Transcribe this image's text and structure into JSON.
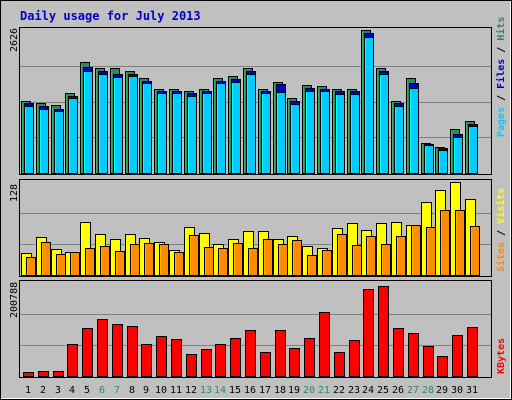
{
  "chart_data": [
    {
      "type": "bar",
      "panel": "hits-files-pages",
      "title": "Daily usage for July 2013",
      "ymax_label": "2626",
      "ylim": [
        0,
        2626
      ],
      "right_labels": {
        "pages": "Pages",
        "files": "Files",
        "hits": "Hits",
        "sep": " / "
      },
      "categories": [
        "1",
        "2",
        "3",
        "4",
        "5",
        "6",
        "7",
        "8",
        "9",
        "10",
        "11",
        "12",
        "13",
        "14",
        "15",
        "16",
        "17",
        "18",
        "19",
        "20",
        "21",
        "22",
        "23",
        "24",
        "25",
        "26",
        "27",
        "28",
        "29",
        "30",
        "31"
      ],
      "series": [
        {
          "name": "Hits",
          "color": "#2e8b57",
          "values": [
            1323,
            1279,
            1241,
            1478,
            2038,
            1930,
            1930,
            1873,
            1740,
            1550,
            1550,
            1500,
            1550,
            1740,
            1778,
            1930,
            1550,
            1664,
            1370,
            1608,
            1597,
            1550,
            1550,
            2626,
            1930,
            1323,
            1740,
            552,
            471,
            804,
            947
          ]
        },
        {
          "name": "Files",
          "color": "#0000cd",
          "values": [
            1282,
            1227,
            1182,
            1415,
            1942,
            1872,
            1827,
            1827,
            1690,
            1510,
            1510,
            1461,
            1510,
            1690,
            1720,
            1866,
            1510,
            1627,
            1318,
            1560,
            1547,
            1510,
            1510,
            2565,
            1866,
            1280,
            1650,
            528,
            455,
            719,
            900
          ]
        },
        {
          "name": "Pages",
          "color": "#00ccff",
          "values": [
            1236,
            1176,
            1138,
            1371,
            1873,
            1810,
            1760,
            1773,
            1646,
            1467,
            1467,
            1411,
            1467,
            1646,
            1672,
            1810,
            1473,
            1482,
            1270,
            1515,
            1505,
            1455,
            1455,
            2497,
            1810,
            1236,
            1560,
            505,
            430,
            658,
            856
          ]
        }
      ]
    },
    {
      "type": "bar",
      "panel": "visits-sites",
      "ymax_label": "128",
      "ylim": [
        0,
        128
      ],
      "right_labels": {
        "sites": "Sites",
        "visits": "Visits",
        "sep": " / "
      },
      "categories": [
        "1",
        "2",
        "3",
        "4",
        "5",
        "6",
        "7",
        "8",
        "9",
        "10",
        "11",
        "12",
        "13",
        "14",
        "15",
        "16",
        "17",
        "18",
        "19",
        "20",
        "21",
        "22",
        "23",
        "24",
        "25",
        "26",
        "27",
        "28",
        "29",
        "30",
        "31"
      ],
      "series": [
        {
          "name": "Visits",
          "color": "#ffff00",
          "values": [
            30,
            52,
            36,
            31,
            73,
            57,
            50,
            57,
            51,
            46,
            34,
            66,
            58,
            42,
            49,
            61,
            60,
            49,
            54,
            40,
            37,
            65,
            72,
            62,
            72,
            73,
            69,
            100,
            117,
            128,
            104
          ]
        },
        {
          "name": "Sites",
          "color": "#ff8c00",
          "values": [
            25,
            46,
            29,
            31,
            37,
            40,
            33,
            42,
            44,
            43,
            32,
            55,
            39,
            37,
            44,
            37,
            49,
            43,
            48,
            27,
            34,
            57,
            41,
            54,
            43,
            54,
            69,
            66,
            90,
            90,
            67
          ]
        }
      ]
    },
    {
      "type": "bar",
      "panel": "kbytes",
      "ymax_label": "200788",
      "ylim": [
        0,
        200788
      ],
      "right_labels": {
        "kbytes": "KBytes"
      },
      "categories": [
        "1",
        "2",
        "3",
        "4",
        "5",
        "6",
        "7",
        "8",
        "9",
        "10",
        "11",
        "12",
        "13",
        "14",
        "15",
        "16",
        "17",
        "18",
        "19",
        "20",
        "21",
        "22",
        "23",
        "24",
        "25",
        "26",
        "27",
        "28",
        "29",
        "30",
        "31"
      ],
      "series": [
        {
          "name": "KBytes",
          "color": "#ff0000",
          "values": [
            9000,
            11000,
            11000,
            69000,
            104000,
            124000,
            112000,
            108000,
            69000,
            87000,
            79000,
            48000,
            59000,
            69000,
            81000,
            99000,
            51000,
            99000,
            61000,
            81000,
            139000,
            51000,
            77000,
            187000,
            194000,
            103000,
            93000,
            64000,
            43000,
            89000,
            105000
          ]
        }
      ]
    }
  ]
}
